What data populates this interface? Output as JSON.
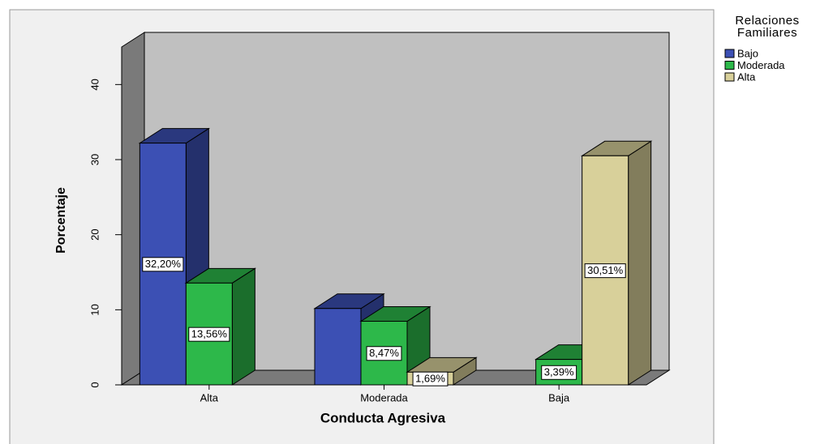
{
  "chart_data": {
    "type": "bar",
    "x_label": "Conducta Agresiva",
    "y_label": "Porcentaje",
    "legend_title": "Relaciones Familiares",
    "categories": [
      "Alta",
      "Moderada",
      "Baja"
    ],
    "series": [
      {
        "name": "Bajo",
        "color": "#3c50b4",
        "values": [
          32.2,
          10.17,
          null
        ],
        "value_labels": [
          "32,20%",
          null,
          null
        ]
      },
      {
        "name": "Moderada",
        "color": "#2db84a",
        "values": [
          13.56,
          8.47,
          3.39
        ],
        "value_labels": [
          "13,56%",
          "8,47%",
          "3,39%"
        ]
      },
      {
        "name": "Alta",
        "color": "#d8d09a",
        "values": [
          null,
          1.69,
          30.51
        ],
        "value_labels": [
          null,
          "1,69%",
          "30,51%"
        ]
      }
    ],
    "ylim": [
      0,
      45
    ],
    "yticks": [
      0,
      10,
      20,
      30,
      40
    ],
    "grid": false,
    "legend": "right"
  }
}
